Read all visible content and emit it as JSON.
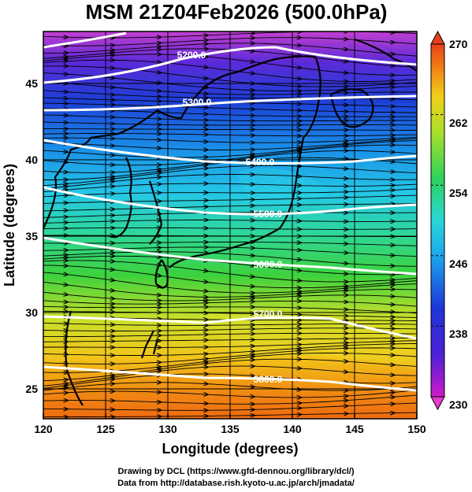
{
  "title": "MSM 21Z04Feb2026 (500.0hPa)",
  "x_axis": {
    "label": "Longitude (degrees)",
    "ticks": [
      "120",
      "125",
      "130",
      "135",
      "140",
      "145",
      "150"
    ]
  },
  "y_axis": {
    "label": "Latitude  (degrees)",
    "ticks": [
      "25",
      "30",
      "35",
      "40",
      "45"
    ]
  },
  "colorbar": {
    "ticks": [
      "230",
      "238",
      "246",
      "254",
      "262",
      "270"
    ]
  },
  "contour_labels": [
    "5200.0",
    "5300.0",
    "5400.0",
    "5500.0",
    "5600.0",
    "5700.0",
    "5800.0"
  ],
  "credits": {
    "line1": "Drawing by DCL (https://www.gfd-dennou.org/library/dcl/)",
    "line2": "Data from http://database.rish.kyoto-u.ac.jp/arch/jmadata/"
  }
}
